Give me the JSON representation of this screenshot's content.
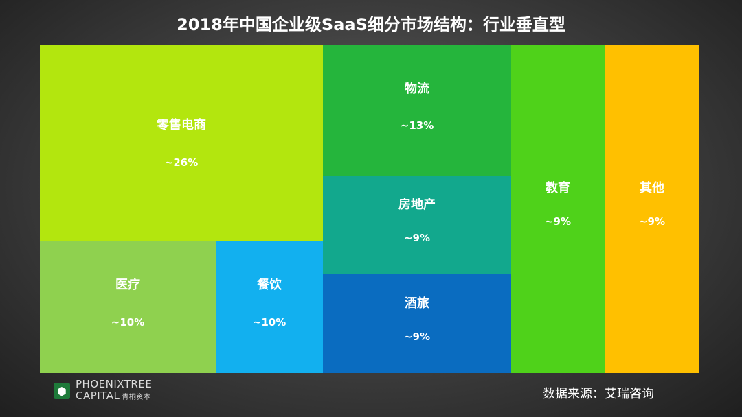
{
  "chart_data": {
    "type": "treemap",
    "title": "2018年中国企业级SaaS细分市场结构：行业垂直型",
    "items": [
      {
        "id": "retail",
        "label": "零售电商",
        "value_label": "~26%",
        "value": 26,
        "color": "#b3e60e"
      },
      {
        "id": "medical",
        "label": "医疗",
        "value_label": "~10%",
        "value": 10,
        "color": "#8fd14f"
      },
      {
        "id": "catering",
        "label": "餐饮",
        "value_label": "~10%",
        "value": 10,
        "color": "#12b0ef"
      },
      {
        "id": "logistics",
        "label": "物流",
        "value_label": "~13%",
        "value": 13,
        "color": "#25b53c"
      },
      {
        "id": "realestate",
        "label": "房地产",
        "value_label": "~9%",
        "value": 9,
        "color": "#12a88d"
      },
      {
        "id": "hotel",
        "label": "酒旅",
        "value_label": "~9%",
        "value": 9,
        "color": "#0a6cc0"
      },
      {
        "id": "education",
        "label": "教育",
        "value_label": "~9%",
        "value": 9,
        "color": "#4fd21a"
      },
      {
        "id": "other",
        "label": "其他",
        "value_label": "~9%",
        "value": 9,
        "color": "#ffc000"
      }
    ]
  },
  "footer": {
    "logo_line1": "PHOENIXTREE",
    "logo_line2": "CAPITAL",
    "logo_cn": "青桐资本",
    "source": "数据来源：艾瑞咨询"
  }
}
